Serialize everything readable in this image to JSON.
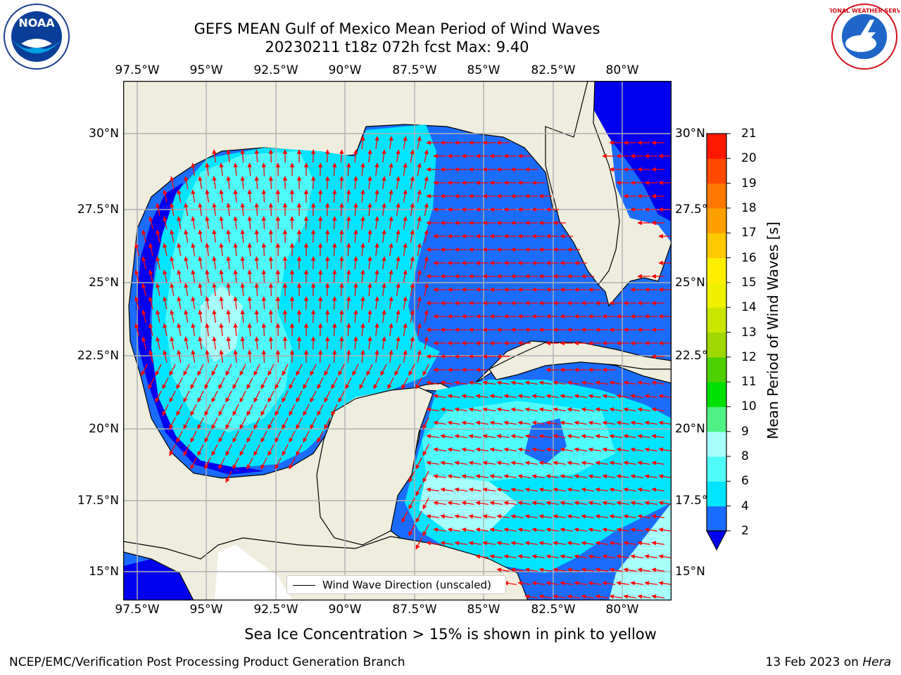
{
  "title": {
    "line1": "GEFS MEAN Gulf of Mexico Mean Period of Wind Waves",
    "line2": "20230211 t18z 072h fcst   Max: 9.40"
  },
  "map": {
    "lon_labels": [
      "97.5°W",
      "95°W",
      "92.5°W",
      "90°W",
      "87.5°W",
      "85°W",
      "82.5°W",
      "80°W"
    ],
    "lat_labels": [
      "30°N",
      "27.5°N",
      "25°N",
      "22.5°N",
      "20°N",
      "17.5°N",
      "15°N"
    ],
    "legend_label": "Wind Wave Direction (unscaled)",
    "land_color": "#efedde",
    "arrow_color": "#ff0000"
  },
  "colorbar": {
    "label": "Mean Period of Wind Waves [s]",
    "ticks": [
      "2",
      "4",
      "6",
      "8",
      "9",
      "10",
      "11",
      "12",
      "13",
      "14",
      "15",
      "16",
      "17",
      "18",
      "19",
      "20",
      "21"
    ],
    "colors": [
      "#1a6cff",
      "#00e5ff",
      "#4ffbf8",
      "#a6fffb",
      "#4ff085",
      "#00e000",
      "#4ed000",
      "#9fd800",
      "#c8e600",
      "#f0f000",
      "#ffee00",
      "#ffc800",
      "#ffa000",
      "#ff7800",
      "#ff4800",
      "#ff1800"
    ],
    "extend_color": "#0000ee"
  },
  "logos": {
    "noaa_text": "NOAA",
    "nws_text": "NATIONAL WEATHER SERVICE"
  },
  "note": "Sea Ice Concentration > 15% is shown in pink to yellow",
  "footer": {
    "left": "NCEP/EMC/Verification Post Processing Product Generation Branch",
    "date": "13 Feb 2023 on ",
    "machine": "Hera"
  }
}
